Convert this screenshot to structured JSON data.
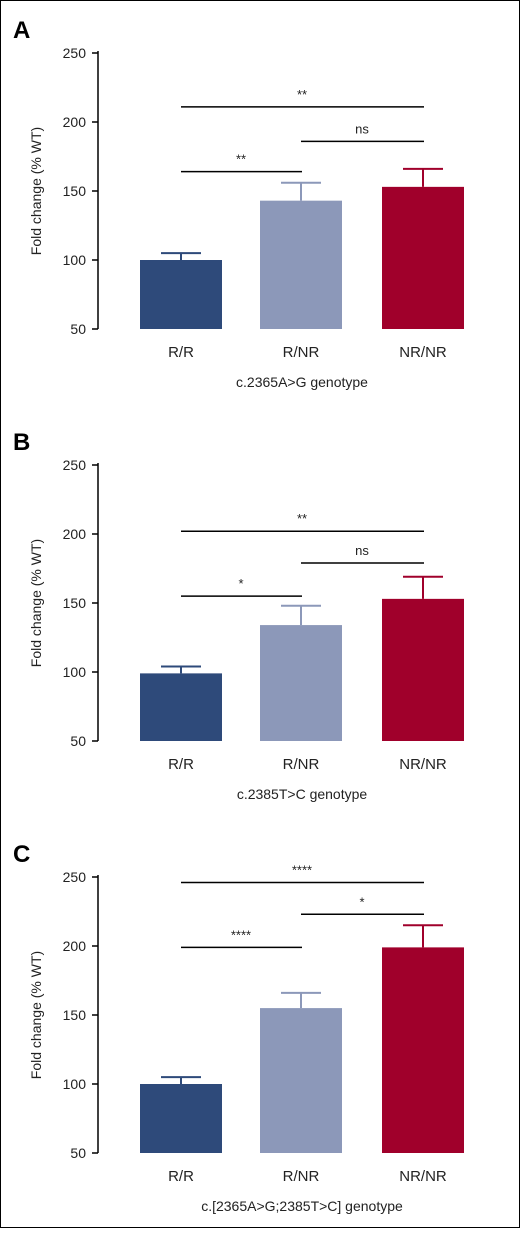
{
  "chart_data": [
    {
      "panel": "A",
      "type": "bar",
      "categories": [
        "R/R",
        "R/NR",
        "NR/NR"
      ],
      "values": [
        100,
        143,
        153
      ],
      "error": [
        5,
        13,
        13
      ],
      "colors": [
        "#2e4a7a",
        "#8c98b9",
        "#a0002b"
      ],
      "ylabel": "Fold change (% WT)",
      "xlabel": "c.2365A>G genotype",
      "ylim": [
        50,
        250
      ],
      "yticks": [
        50,
        100,
        150,
        200,
        250
      ],
      "significance": [
        {
          "from": 0,
          "to": 1,
          "label": "**",
          "y": 164
        },
        {
          "from": 1,
          "to": 2,
          "label": "ns",
          "y": 186
        },
        {
          "from": 0,
          "to": 2,
          "label": "**",
          "y": 211
        }
      ]
    },
    {
      "panel": "B",
      "type": "bar",
      "categories": [
        "R/R",
        "R/NR",
        "NR/NR"
      ],
      "values": [
        99,
        134,
        153
      ],
      "error": [
        5,
        14,
        16
      ],
      "colors": [
        "#2e4a7a",
        "#8c98b9",
        "#a0002b"
      ],
      "ylabel": "Fold change (% WT)",
      "xlabel": "c.2385T>C genotype",
      "ylim": [
        50,
        250
      ],
      "yticks": [
        50,
        100,
        150,
        200,
        250
      ],
      "significance": [
        {
          "from": 0,
          "to": 1,
          "label": "*",
          "y": 155
        },
        {
          "from": 1,
          "to": 2,
          "label": "ns",
          "y": 179
        },
        {
          "from": 0,
          "to": 2,
          "label": "**",
          "y": 202
        }
      ]
    },
    {
      "panel": "C",
      "type": "bar",
      "categories": [
        "R/R",
        "R/NR",
        "NR/NR"
      ],
      "values": [
        100,
        155,
        199
      ],
      "error": [
        5,
        11,
        16
      ],
      "colors": [
        "#2e4a7a",
        "#8c98b9",
        "#a0002b"
      ],
      "ylabel": "Fold change (% WT)",
      "xlabel": "c.[2365A>G;2385T>C] genotype",
      "ylim": [
        50,
        250
      ],
      "yticks": [
        50,
        100,
        150,
        200,
        250
      ],
      "significance": [
        {
          "from": 0,
          "to": 1,
          "label": "****",
          "y": 199
        },
        {
          "from": 1,
          "to": 2,
          "label": "*",
          "y": 223
        },
        {
          "from": 0,
          "to": 2,
          "label": "****",
          "y": 246
        }
      ]
    }
  ]
}
